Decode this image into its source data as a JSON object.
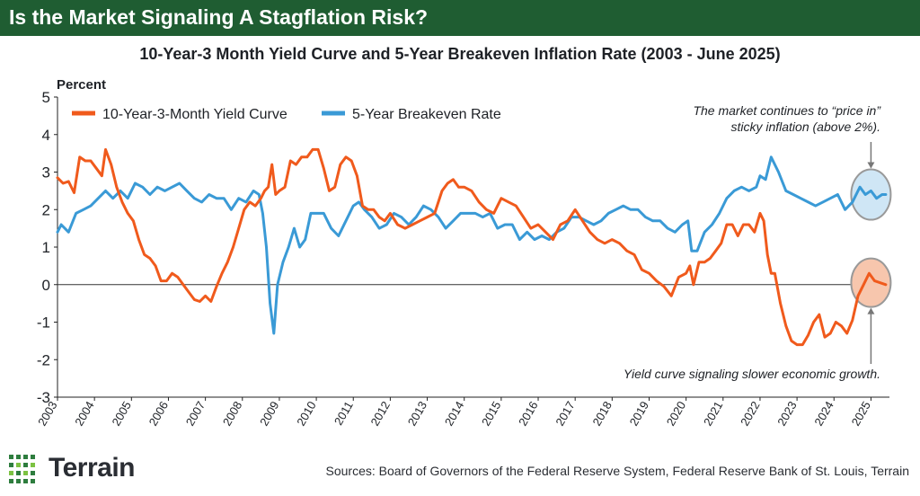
{
  "banner": {
    "title": "Is the Market Signaling A Stagflation Risk?"
  },
  "colors": {
    "banner": "#1f5d32",
    "yield": "#f05a1c",
    "breakeven": "#3a9ad6",
    "zero_line": "#333333"
  },
  "chart_data": {
    "type": "line",
    "title": "10-Year-3 Month Yield Curve and 5-Year Breakeven Inflation Rate (2003 - June 2025)",
    "ylabel": "Percent",
    "ylim": [
      -3,
      5
    ],
    "yticks": [
      "5",
      "4",
      "3",
      "2",
      "1",
      "0",
      "-1",
      "-2",
      "-3"
    ],
    "xlim": [
      2003,
      2025.5
    ],
    "xticks": [
      "2003",
      "2004",
      "2005",
      "2006",
      "2007",
      "2008",
      "2009",
      "2010",
      "2011",
      "2012",
      "2013",
      "2014",
      "2015",
      "2016",
      "2017",
      "2018",
      "2019",
      "2020",
      "2021",
      "2022",
      "2023",
      "2024",
      "2025"
    ],
    "legend_position": "top-left",
    "series": [
      {
        "name": "10-Year-3-Month Yield Curve",
        "color": "#f05a1c",
        "x": [
          2003.0,
          2003.15,
          2003.3,
          2003.45,
          2003.6,
          2003.75,
          2003.9,
          2004.05,
          2004.2,
          2004.3,
          2004.45,
          2004.6,
          2004.75,
          2004.9,
          2005.05,
          2005.2,
          2005.35,
          2005.5,
          2005.65,
          2005.8,
          2005.95,
          2006.1,
          2006.25,
          2006.4,
          2006.55,
          2006.7,
          2006.85,
          2007.0,
          2007.15,
          2007.3,
          2007.45,
          2007.6,
          2007.75,
          2007.9,
          2008.05,
          2008.2,
          2008.35,
          2008.5,
          2008.6,
          2008.7,
          2008.8,
          2008.9,
          2009.0,
          2009.15,
          2009.3,
          2009.45,
          2009.6,
          2009.75,
          2009.9,
          2010.05,
          2010.2,
          2010.35,
          2010.5,
          2010.65,
          2010.8,
          2010.95,
          2011.1,
          2011.25,
          2011.4,
          2011.55,
          2011.7,
          2011.85,
          2012.0,
          2012.2,
          2012.4,
          2012.6,
          2012.8,
          2013.0,
          2013.2,
          2013.4,
          2013.55,
          2013.7,
          2013.85,
          2014.0,
          2014.2,
          2014.4,
          2014.6,
          2014.8,
          2015.0,
          2015.2,
          2015.4,
          2015.6,
          2015.8,
          2016.0,
          2016.2,
          2016.4,
          2016.6,
          2016.8,
          2017.0,
          2017.2,
          2017.4,
          2017.6,
          2017.8,
          2018.0,
          2018.2,
          2018.4,
          2018.6,
          2018.8,
          2019.0,
          2019.2,
          2019.4,
          2019.6,
          2019.8,
          2020.0,
          2020.1,
          2020.2,
          2020.35,
          2020.5,
          2020.65,
          2020.8,
          2020.95,
          2021.1,
          2021.25,
          2021.4,
          2021.55,
          2021.7,
          2021.85,
          2022.0,
          2022.1,
          2022.2,
          2022.3,
          2022.4,
          2022.55,
          2022.7,
          2022.85,
          2023.0,
          2023.15,
          2023.3,
          2023.45,
          2023.6,
          2023.75,
          2023.9,
          2024.05,
          2024.2,
          2024.35,
          2024.5,
          2024.65,
          2024.8,
          2024.95,
          2025.1,
          2025.25,
          2025.4
        ],
        "values": [
          2.85,
          2.7,
          2.75,
          2.45,
          3.4,
          3.3,
          3.3,
          3.1,
          2.9,
          3.6,
          3.2,
          2.6,
          2.2,
          1.9,
          1.7,
          1.2,
          0.8,
          0.7,
          0.5,
          0.1,
          0.1,
          0.3,
          0.2,
          0.0,
          -0.2,
          -0.4,
          -0.45,
          -0.3,
          -0.45,
          -0.05,
          0.3,
          0.6,
          1.0,
          1.5,
          2.0,
          2.2,
          2.1,
          2.3,
          2.5,
          2.6,
          3.2,
          2.4,
          2.5,
          2.6,
          3.3,
          3.2,
          3.4,
          3.4,
          3.6,
          3.6,
          3.1,
          2.5,
          2.6,
          3.2,
          3.4,
          3.3,
          2.9,
          2.1,
          2.0,
          2.0,
          1.8,
          1.7,
          1.9,
          1.6,
          1.5,
          1.6,
          1.7,
          1.8,
          1.9,
          2.5,
          2.7,
          2.8,
          2.6,
          2.6,
          2.5,
          2.2,
          2.0,
          1.9,
          2.3,
          2.2,
          2.1,
          1.8,
          1.5,
          1.6,
          1.4,
          1.2,
          1.6,
          1.7,
          2.0,
          1.7,
          1.4,
          1.2,
          1.1,
          1.2,
          1.1,
          0.9,
          0.8,
          0.4,
          0.3,
          0.1,
          -0.05,
          -0.3,
          0.2,
          0.3,
          0.5,
          0.0,
          0.6,
          0.6,
          0.7,
          0.9,
          1.1,
          1.6,
          1.6,
          1.3,
          1.6,
          1.6,
          1.4,
          1.9,
          1.7,
          0.8,
          0.3,
          0.3,
          -0.5,
          -1.1,
          -1.5,
          -1.6,
          -1.6,
          -1.35,
          -1.0,
          -0.8,
          -1.4,
          -1.3,
          -1.0,
          -1.1,
          -1.3,
          -0.95,
          -0.3,
          0.0,
          0.3,
          0.1,
          0.05,
          0.0
        ]
      },
      {
        "name": "5-Year Breakeven Rate",
        "color": "#3a9ad6",
        "x": [
          2003.0,
          2003.1,
          2003.3,
          2003.5,
          2003.7,
          2003.9,
          2004.1,
          2004.3,
          2004.5,
          2004.7,
          2004.9,
          2005.1,
          2005.3,
          2005.5,
          2005.7,
          2005.9,
          2006.1,
          2006.3,
          2006.5,
          2006.7,
          2006.9,
          2007.1,
          2007.3,
          2007.5,
          2007.7,
          2007.9,
          2008.1,
          2008.3,
          2008.45,
          2008.55,
          2008.65,
          2008.75,
          2008.85,
          2008.95,
          2009.1,
          2009.25,
          2009.4,
          2009.55,
          2009.7,
          2009.85,
          2010.0,
          2010.2,
          2010.4,
          2010.6,
          2010.8,
          2011.0,
          2011.15,
          2011.3,
          2011.5,
          2011.7,
          2011.9,
          2012.1,
          2012.3,
          2012.5,
          2012.7,
          2012.9,
          2013.1,
          2013.3,
          2013.5,
          2013.7,
          2013.9,
          2014.1,
          2014.3,
          2014.5,
          2014.7,
          2014.9,
          2015.1,
          2015.3,
          2015.5,
          2015.7,
          2015.9,
          2016.1,
          2016.3,
          2016.5,
          2016.7,
          2016.9,
          2017.1,
          2017.3,
          2017.5,
          2017.7,
          2017.9,
          2018.1,
          2018.3,
          2018.5,
          2018.7,
          2018.9,
          2019.1,
          2019.3,
          2019.5,
          2019.7,
          2019.9,
          2020.05,
          2020.15,
          2020.3,
          2020.5,
          2020.7,
          2020.9,
          2021.1,
          2021.3,
          2021.5,
          2021.7,
          2021.9,
          2022.0,
          2022.15,
          2022.3,
          2022.5,
          2022.7,
          2022.9,
          2023.1,
          2023.3,
          2023.5,
          2023.7,
          2023.9,
          2024.1,
          2024.3,
          2024.5,
          2024.7,
          2024.85,
          2025.0,
          2025.15,
          2025.3,
          2025.4
        ],
        "values": [
          1.4,
          1.6,
          1.4,
          1.9,
          2.0,
          2.1,
          2.3,
          2.5,
          2.3,
          2.5,
          2.3,
          2.7,
          2.6,
          2.4,
          2.6,
          2.5,
          2.6,
          2.7,
          2.5,
          2.3,
          2.2,
          2.4,
          2.3,
          2.3,
          2.0,
          2.3,
          2.2,
          2.5,
          2.4,
          1.9,
          1.0,
          -0.5,
          -1.3,
          0.0,
          0.6,
          1.0,
          1.5,
          1.0,
          1.2,
          1.9,
          1.9,
          1.9,
          1.5,
          1.3,
          1.7,
          2.1,
          2.2,
          2.0,
          1.8,
          1.5,
          1.6,
          1.9,
          1.8,
          1.6,
          1.8,
          2.1,
          2.0,
          1.8,
          1.5,
          1.7,
          1.9,
          1.9,
          1.9,
          1.8,
          1.9,
          1.5,
          1.6,
          1.6,
          1.2,
          1.4,
          1.2,
          1.3,
          1.2,
          1.4,
          1.5,
          1.8,
          1.8,
          1.7,
          1.6,
          1.7,
          1.9,
          2.0,
          2.1,
          2.0,
          2.0,
          1.8,
          1.7,
          1.7,
          1.5,
          1.4,
          1.6,
          1.7,
          0.9,
          0.9,
          1.4,
          1.6,
          1.9,
          2.3,
          2.5,
          2.6,
          2.5,
          2.6,
          2.9,
          2.8,
          3.4,
          3.0,
          2.5,
          2.4,
          2.3,
          2.2,
          2.1,
          2.2,
          2.3,
          2.4,
          2.0,
          2.2,
          2.6,
          2.4,
          2.5,
          2.3,
          2.4,
          2.4
        ]
      }
    ],
    "annotations": [
      {
        "text_line1": "The market continues to “price in”",
        "text_line2": "sticky inflation (above 2%).",
        "target_series": "5-Year Breakeven Rate"
      },
      {
        "text_line1": "Yield curve signaling slower economic growth.",
        "target_series": "10-Year-3-Month Yield Curve"
      }
    ]
  },
  "footer": {
    "logo_text": "Terrain",
    "source": "Sources: Board of Governors of the Federal Reserve System, Federal Reserve Bank of St. Louis, Terrain"
  }
}
